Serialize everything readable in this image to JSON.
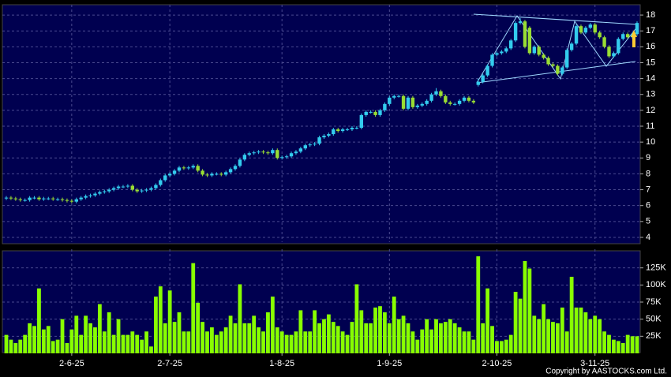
{
  "chart_data": [
    {
      "type": "candlestick",
      "categories": [
        null,
        null,
        null,
        null,
        null,
        null,
        null,
        null,
        null,
        null,
        null,
        null,
        null,
        null,
        "2-6-25",
        null,
        null,
        null,
        null,
        null,
        null,
        null,
        null,
        null,
        null,
        null,
        null,
        null,
        null,
        null,
        null,
        null,
        null,
        null,
        null,
        "2-7-25",
        null,
        null,
        null,
        null,
        null,
        null,
        null,
        null,
        null,
        null,
        null,
        null,
        null,
        null,
        null,
        null,
        null,
        null,
        null,
        null,
        null,
        null,
        null,
        "1-8-25",
        null,
        null,
        null,
        null,
        null,
        null,
        null,
        null,
        null,
        null,
        null,
        null,
        null,
        null,
        null,
        null,
        null,
        null,
        null,
        null,
        null,
        null,
        "1-9-25",
        null,
        null,
        null,
        null,
        null,
        null,
        null,
        null,
        null,
        null,
        null,
        null,
        null,
        null,
        null,
        null,
        null,
        null,
        null,
        null,
        null,
        null,
        "2-10-25",
        null,
        null,
        null,
        null,
        null,
        null,
        null,
        null,
        null,
        null,
        null,
        null,
        null,
        null,
        null,
        null,
        null,
        null,
        null,
        null,
        "3-11-25",
        null,
        null,
        null,
        null,
        null,
        null,
        null,
        null,
        null
      ],
      "open": [
        6.45,
        6.5,
        6.45,
        6.4,
        6.35,
        6.35,
        6.5,
        6.5,
        6.4,
        6.45,
        6.45,
        6.4,
        6.4,
        6.35,
        6.3,
        6.25,
        6.4,
        6.5,
        6.6,
        6.65,
        6.75,
        6.85,
        6.9,
        7.0,
        7.1,
        7.2,
        7.2,
        7.25,
        7.0,
        6.9,
        6.95,
        7.0,
        7.1,
        7.3,
        7.6,
        7.9,
        8.0,
        8.2,
        8.4,
        8.35,
        8.4,
        8.5,
        8.2,
        7.95,
        7.9,
        8.0,
        8.0,
        7.95,
        8.1,
        8.3,
        8.5,
        8.9,
        9.2,
        9.3,
        9.35,
        9.4,
        9.35,
        9.3,
        9.5,
        9.0,
        9.05,
        9.1,
        9.3,
        9.4,
        9.6,
        9.8,
        9.85,
        9.9,
        10.3,
        10.4,
        10.5,
        10.8,
        10.7,
        10.8,
        10.8,
        10.9,
        10.9,
        11.7,
        11.9,
        11.9,
        11.7,
        12.0,
        12.4,
        12.8,
        12.9,
        12.9,
        12.1,
        12.8,
        12.2,
        12.3,
        12.4,
        12.6,
        13.0,
        13.2,
        12.9,
        12.5,
        12.4,
        12.4,
        12.6,
        12.8,
        12.6,
        13.6,
        13.8,
        14.2,
        14.8,
        15.5,
        15.6,
        15.7,
        15.9,
        16.4,
        17.5,
        17.6,
        17.2,
        15.6,
        16.0,
        15.5,
        15.3,
        14.9,
        14.8,
        14.3,
        14.7,
        15.8,
        16.2,
        17.3,
        16.9,
        17.2,
        17.4,
        16.9,
        16.6,
        16.0,
        15.4,
        15.6,
        16.5,
        16.8,
        16.6,
        16.8
      ],
      "high": [
        6.6,
        6.6,
        6.55,
        6.5,
        6.45,
        6.6,
        6.6,
        6.6,
        6.55,
        6.55,
        6.55,
        6.5,
        6.5,
        6.45,
        6.4,
        6.5,
        6.6,
        6.7,
        6.75,
        6.85,
        6.95,
        7.0,
        7.1,
        7.2,
        7.3,
        7.3,
        7.35,
        7.35,
        7.1,
        7.05,
        7.1,
        7.2,
        7.4,
        7.7,
        8.0,
        8.1,
        8.3,
        8.5,
        8.5,
        8.5,
        8.6,
        8.6,
        8.3,
        8.05,
        8.1,
        8.1,
        8.1,
        8.2,
        8.4,
        8.6,
        9.0,
        9.3,
        9.4,
        9.45,
        9.5,
        9.5,
        9.45,
        9.6,
        9.6,
        9.15,
        9.2,
        9.4,
        9.5,
        9.7,
        9.9,
        9.95,
        10.0,
        10.4,
        10.5,
        10.6,
        10.9,
        10.9,
        10.9,
        10.9,
        11.0,
        11.0,
        11.8,
        12.0,
        12.0,
        12.0,
        12.1,
        12.5,
        12.9,
        13.0,
        13.0,
        13.0,
        12.9,
        12.9,
        12.4,
        12.5,
        12.7,
        13.1,
        13.4,
        13.3,
        13.0,
        12.6,
        12.5,
        12.7,
        12.9,
        12.9,
        12.7,
        14.0,
        14.3,
        14.9,
        15.6,
        15.7,
        15.8,
        16.0,
        16.5,
        17.6,
        17.8,
        17.7,
        17.3,
        16.1,
        16.1,
        15.6,
        15.4,
        15.0,
        14.9,
        14.8,
        15.9,
        16.3,
        17.4,
        17.4,
        17.3,
        17.5,
        17.5,
        17.0,
        16.7,
        16.1,
        15.7,
        16.6,
        16.9,
        16.9,
        16.9,
        17.6
      ],
      "low": [
        6.35,
        6.35,
        6.3,
        6.25,
        6.25,
        6.25,
        6.4,
        6.3,
        6.3,
        6.35,
        6.3,
        6.3,
        6.25,
        6.2,
        6.15,
        6.15,
        6.3,
        6.4,
        6.5,
        6.55,
        6.65,
        6.75,
        6.8,
        6.9,
        7.0,
        7.1,
        7.1,
        6.9,
        6.8,
        6.8,
        6.85,
        6.9,
        7.0,
        7.2,
        7.5,
        7.8,
        7.9,
        8.1,
        8.25,
        8.25,
        8.3,
        8.1,
        7.85,
        7.8,
        7.8,
        7.9,
        7.85,
        7.85,
        8.0,
        8.2,
        8.4,
        8.8,
        9.1,
        9.2,
        9.25,
        9.25,
        9.2,
        9.2,
        8.9,
        8.9,
        8.95,
        9.0,
        9.2,
        9.3,
        9.5,
        9.7,
        9.75,
        9.8,
        10.2,
        10.3,
        10.4,
        10.6,
        10.6,
        10.7,
        10.7,
        10.8,
        10.8,
        11.6,
        11.8,
        11.6,
        11.6,
        11.9,
        12.3,
        12.7,
        12.8,
        12.0,
        12.0,
        12.1,
        12.1,
        12.2,
        12.3,
        12.5,
        12.9,
        12.8,
        12.4,
        12.3,
        12.3,
        12.3,
        12.5,
        12.5,
        12.4,
        13.5,
        13.7,
        14.1,
        14.7,
        15.4,
        15.5,
        15.6,
        15.8,
        16.3,
        17.4,
        15.9,
        15.5,
        15.5,
        15.4,
        15.2,
        14.8,
        14.7,
        14.2,
        14.2,
        14.6,
        15.7,
        16.1,
        16.8,
        16.8,
        17.1,
        16.8,
        16.5,
        15.9,
        15.3,
        15.3,
        15.5,
        16.4,
        16.5,
        16.5,
        16.7
      ],
      "close": [
        6.5,
        6.45,
        6.4,
        6.35,
        6.35,
        6.5,
        6.5,
        6.4,
        6.45,
        6.45,
        6.4,
        6.4,
        6.35,
        6.3,
        6.25,
        6.4,
        6.5,
        6.6,
        6.65,
        6.75,
        6.85,
        6.9,
        7.0,
        7.1,
        7.2,
        7.2,
        7.25,
        7.0,
        6.9,
        6.95,
        7.0,
        7.1,
        7.3,
        7.6,
        7.9,
        8.0,
        8.2,
        8.4,
        8.35,
        8.4,
        8.5,
        8.2,
        7.95,
        7.9,
        8.0,
        8.0,
        7.95,
        8.1,
        8.3,
        8.5,
        8.9,
        9.2,
        9.3,
        9.35,
        9.4,
        9.35,
        9.3,
        9.5,
        9.0,
        9.05,
        9.1,
        9.3,
        9.4,
        9.6,
        9.8,
        9.85,
        9.9,
        10.3,
        10.4,
        10.5,
        10.8,
        10.7,
        10.8,
        10.8,
        10.9,
        10.9,
        11.7,
        11.9,
        11.9,
        11.7,
        12.0,
        12.4,
        12.8,
        12.9,
        12.9,
        12.1,
        12.8,
        12.2,
        12.3,
        12.4,
        12.6,
        13.0,
        13.2,
        12.9,
        12.5,
        12.4,
        12.4,
        12.6,
        12.8,
        12.6,
        12.5,
        13.8,
        14.2,
        14.8,
        15.5,
        15.6,
        15.7,
        15.9,
        16.4,
        17.5,
        17.6,
        16.0,
        15.6,
        16.0,
        15.5,
        15.3,
        14.9,
        14.8,
        14.3,
        14.7,
        15.8,
        16.2,
        17.3,
        16.9,
        17.2,
        17.4,
        16.9,
        16.6,
        16.0,
        15.4,
        15.6,
        16.5,
        16.8,
        16.6,
        16.8,
        17.5
      ],
      "up_color": "#33ccee",
      "down_color": "#99dd33",
      "ylim": [
        3.65,
        18.55
      ],
      "yticks": [
        4,
        5,
        6,
        7,
        8,
        9,
        10,
        11,
        12,
        13,
        14,
        15,
        16,
        17,
        18
      ],
      "grid": true
    },
    {
      "type": "bar",
      "values": [
        27000,
        20000,
        15000,
        20000,
        27000,
        44000,
        40000,
        95000,
        35000,
        40000,
        18000,
        20000,
        50000,
        15000,
        35000,
        55000,
        27000,
        55000,
        44000,
        38000,
        72000,
        32000,
        60000,
        27000,
        50000,
        27000,
        27000,
        32000,
        27000,
        20000,
        32000,
        10000,
        83000,
        98000,
        44000,
        92000,
        46000,
        60000,
        32000,
        32000,
        132000,
        74000,
        46000,
        32000,
        38000,
        27000,
        32000,
        38000,
        55000,
        44000,
        101000,
        44000,
        44000,
        55000,
        38000,
        32000,
        60000,
        83000,
        38000,
        32000,
        27000,
        27000,
        32000,
        63000,
        32000,
        32000,
        63000,
        44000,
        50000,
        57000,
        46000,
        40000,
        32000,
        27000,
        46000,
        101000,
        63000,
        44000,
        44000,
        67000,
        69000,
        60000,
        44000,
        83000,
        50000,
        55000,
        44000,
        32000,
        20000,
        35000,
        50000,
        35000,
        50000,
        44000,
        46000,
        50000,
        44000,
        38000,
        32000,
        32000,
        20000,
        142000,
        44000,
        95000,
        40000,
        18000,
        18000,
        20000,
        27000,
        90000,
        80000,
        135000,
        124000,
        55000,
        50000,
        72000,
        50000,
        46000,
        44000,
        67000,
        32000,
        112000,
        67000,
        67000,
        60000,
        50000,
        55000,
        50000,
        32000,
        27000,
        20000,
        18000,
        15000,
        27000,
        25000,
        25000
      ],
      "color": "#88ff00",
      "ylim": [
        0,
        150000
      ],
      "yticks": [
        {
          "value": 25000,
          "label": "25K"
        },
        {
          "value": 50000,
          "label": "50K"
        },
        {
          "value": 75000,
          "label": "75K"
        },
        {
          "value": 100000,
          "label": "100K"
        },
        {
          "value": 125000,
          "label": "125K"
        }
      ],
      "grid": true
    }
  ],
  "copyright": "Copyright by AASTOCKS.com Ltd."
}
